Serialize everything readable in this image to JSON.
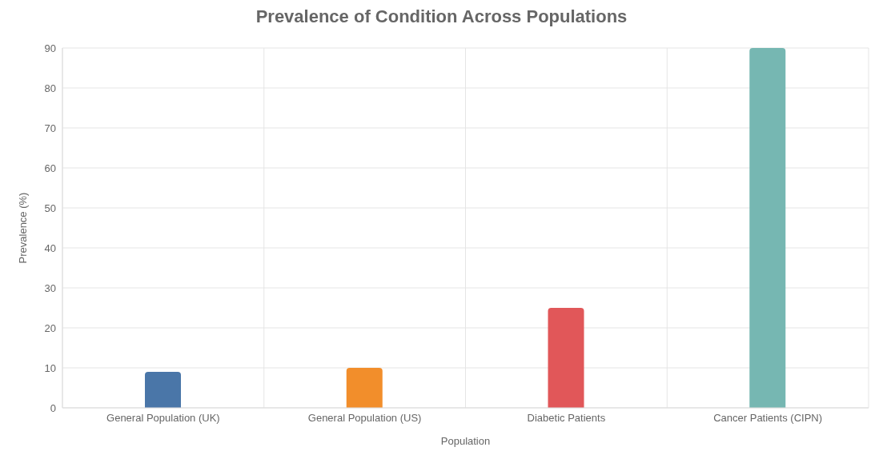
{
  "chart_data": {
    "type": "bar",
    "title": "Prevalence of Condition Across Populations",
    "xlabel": "Population",
    "ylabel": "Prevalence (%)",
    "categories": [
      "General Population (UK)",
      "General Population (US)",
      "Diabetic Patients",
      "Cancer Patients (CIPN)"
    ],
    "values": [
      9,
      10,
      25,
      90
    ],
    "colors": [
      "#4a76a8",
      "#f28e2b",
      "#e15759",
      "#76b7b2"
    ],
    "ylim": [
      0,
      90
    ],
    "yticks": [
      0,
      10,
      20,
      30,
      40,
      50,
      60,
      70,
      80,
      90
    ],
    "grid": true
  }
}
